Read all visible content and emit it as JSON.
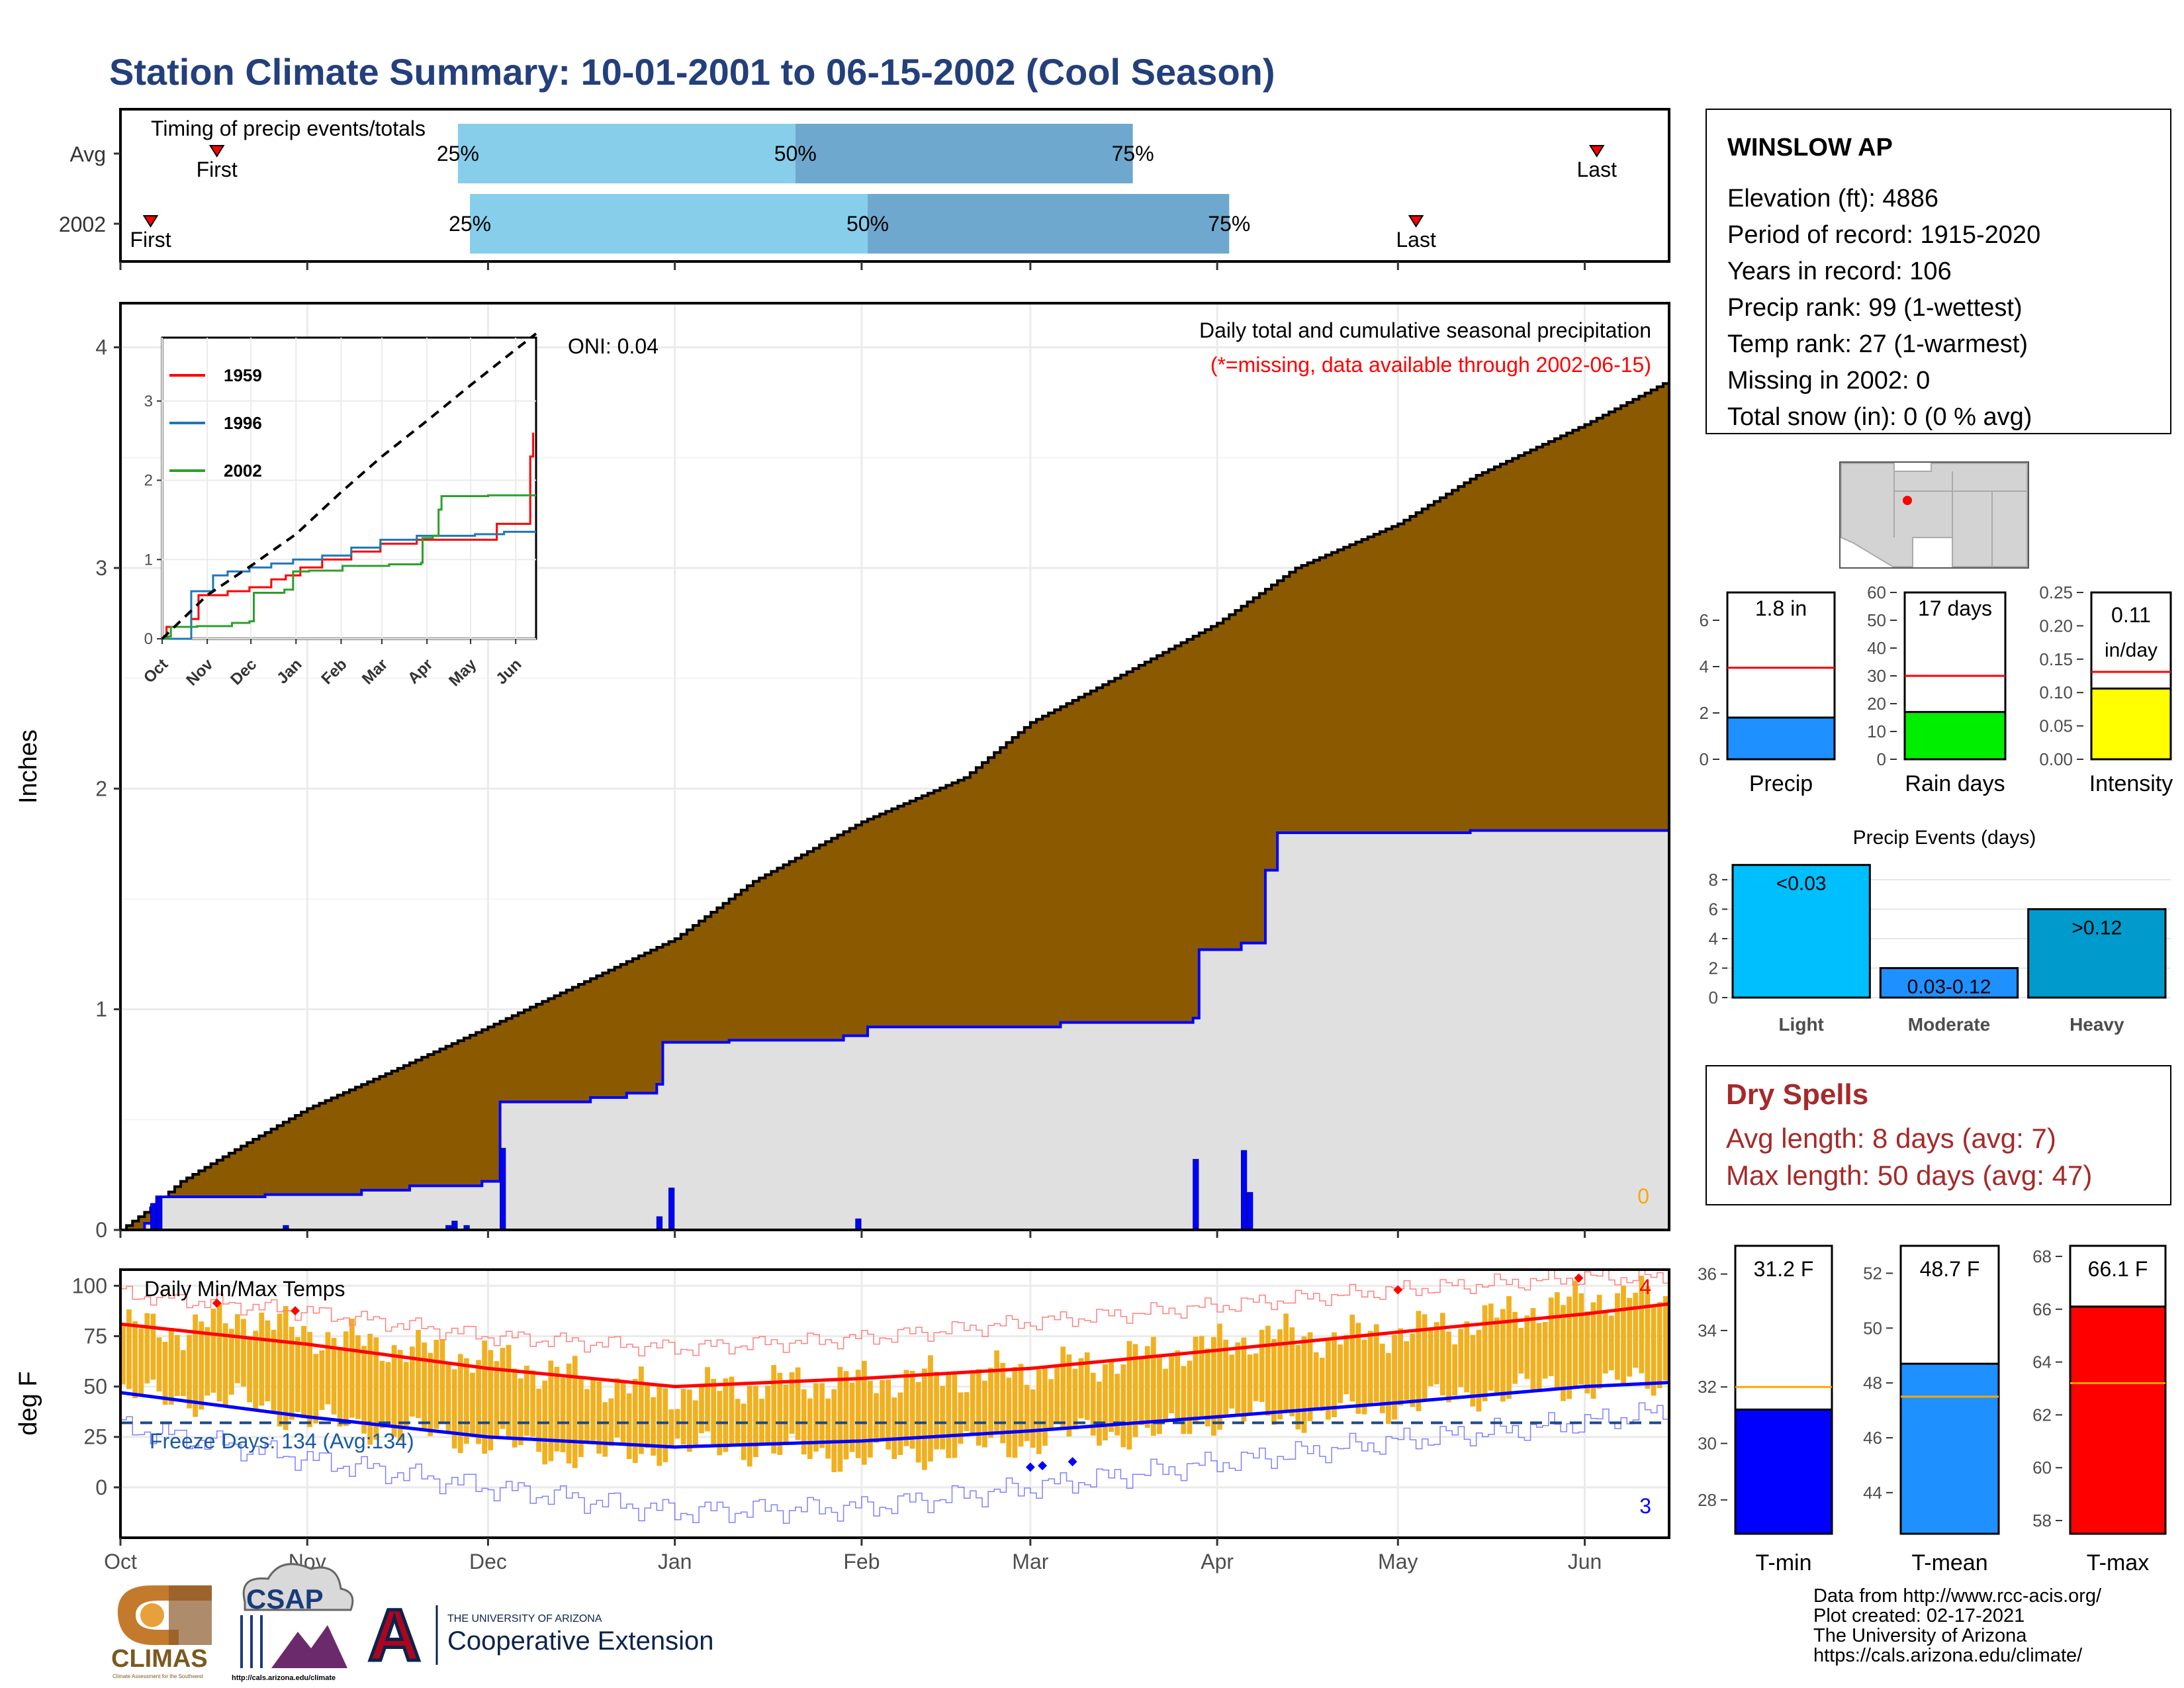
{
  "title": "Station Climate Summary: 10-01-2001 to 06-15-2002 (Cool Season)",
  "colors": {
    "title": "#233f7c",
    "cum_fill": "#8b5a00",
    "light_blue": "#87ceeb",
    "mid_blue": "#6fa8ce",
    "red": "#ff0000",
    "blue": "#0000ff",
    "orange_bar": "#f0b020",
    "dry_red": "#a52a2a",
    "green": "#00ee00",
    "yellow": "#ffff00",
    "dodger": "#1e90ff",
    "sky": "#00bfff",
    "deep_sky": "#009acd",
    "avg_line": "#ffa500"
  },
  "timing_panel": {
    "label": "Timing of precip events/totals",
    "rows": [
      {
        "name": "Avg",
        "first_day": 16,
        "last_day": 245,
        "p25_day": 56,
        "p50_day": 112,
        "p75_day": 168,
        "first_label": "First",
        "last_label": "Last",
        "p25_label": "25%",
        "p50_label": "50%",
        "p75_label": "75%"
      },
      {
        "name": "2002",
        "first_day": 5,
        "last_day": 215,
        "p25_day": 58,
        "p50_day": 124,
        "p75_day": 184,
        "first_label": "First",
        "last_label": "Last",
        "p25_label": "25%",
        "p50_label": "50%",
        "p75_label": "75%"
      }
    ]
  },
  "months": {
    "labels": [
      "Oct",
      "Nov",
      "Dec",
      "Jan",
      "Feb",
      "Mar",
      "Apr",
      "May",
      "Jun"
    ],
    "start_days": [
      0,
      31,
      61,
      92,
      123,
      151,
      182,
      212,
      243
    ]
  },
  "chart_data": [
    {
      "type": "area",
      "name": "Daily total and cumulative seasonal precipitation",
      "title": "Daily total and cumulative seasonal precipitation",
      "subtitle": "(*=missing, data available through 2002-06-15)",
      "ylabel": "Inches",
      "ylim": [
        0,
        4.2
      ],
      "yticks": [
        0,
        1,
        2,
        3,
        4
      ],
      "oni_label": "ONI: 0.04",
      "missing_count": "0",
      "avg_cumulative": {
        "x": [
          0,
          5,
          10,
          20,
          31,
          45,
          61,
          75,
          92,
          105,
          123,
          140,
          151,
          165,
          182,
          195,
          212,
          225,
          243,
          257
        ],
        "y": [
          0,
          0.1,
          0.22,
          0.38,
          0.55,
          0.72,
          0.92,
          1.1,
          1.32,
          1.58,
          1.85,
          2.05,
          2.3,
          2.5,
          2.75,
          3.0,
          3.2,
          3.42,
          3.65,
          3.85
        ]
      },
      "cumulative_2002": {
        "x": [
          0,
          4,
          6,
          8,
          12,
          24,
          40,
          48,
          60,
          63,
          78,
          84,
          89,
          90,
          101,
          120,
          124,
          156,
          178,
          179,
          186,
          190,
          192,
          224,
          257
        ],
        "y": [
          0,
          0.03,
          0.15,
          0.15,
          0.15,
          0.16,
          0.18,
          0.2,
          0.22,
          0.58,
          0.6,
          0.62,
          0.66,
          0.85,
          0.86,
          0.88,
          0.92,
          0.94,
          0.96,
          1.27,
          1.3,
          1.63,
          1.8,
          1.81,
          1.81
        ]
      },
      "daily_bars": [
        {
          "day": 5,
          "value": 0.12
        },
        {
          "day": 6,
          "value": 0.15
        },
        {
          "day": 27,
          "value": 0.02
        },
        {
          "day": 54,
          "value": 0.02
        },
        {
          "day": 55,
          "value": 0.04
        },
        {
          "day": 57,
          "value": 0.02
        },
        {
          "day": 63,
          "value": 0.37
        },
        {
          "day": 89,
          "value": 0.06
        },
        {
          "day": 91,
          "value": 0.19
        },
        {
          "day": 122,
          "value": 0.05
        },
        {
          "day": 178,
          "value": 0.32
        },
        {
          "day": 186,
          "value": 0.36
        },
        {
          "day": 187,
          "value": 0.17
        }
      ]
    },
    {
      "type": "line",
      "name": "inset",
      "xlabels": [
        "Oct",
        "Nov",
        "Dec",
        "Jan",
        "Feb",
        "Mar",
        "Apr",
        "May",
        "Jun"
      ],
      "ylim": [
        0,
        3.8
      ],
      "yticks": [
        0,
        1,
        2,
        3
      ],
      "series": [
        {
          "name": "1959",
          "color": "#ff0000",
          "x": [
            0,
            3,
            20,
            25,
            45,
            60,
            75,
            85,
            95,
            110,
            130,
            150,
            175,
            195,
            210,
            230,
            253,
            255
          ],
          "y": [
            0,
            0.15,
            0.25,
            0.55,
            0.6,
            0.65,
            0.75,
            0.8,
            0.9,
            1.0,
            1.1,
            1.2,
            1.25,
            1.25,
            1.25,
            1.45,
            2.3,
            2.6
          ]
        },
        {
          "name": "1996",
          "color": "#1f77b4",
          "x": [
            0,
            20,
            35,
            45,
            60,
            75,
            90,
            110,
            130,
            150,
            175,
            195,
            215,
            235,
            257
          ],
          "y": [
            0,
            0.6,
            0.8,
            0.85,
            0.9,
            0.95,
            1.0,
            1.05,
            1.15,
            1.25,
            1.3,
            1.3,
            1.32,
            1.35,
            1.35
          ]
        },
        {
          "name": "2002",
          "color": "#2ca02c",
          "x": [
            0,
            4,
            6,
            24,
            48,
            60,
            63,
            84,
            90,
            101,
            124,
            156,
            178,
            179,
            186,
            190,
            192,
            224,
            257
          ],
          "y": [
            0,
            0.03,
            0.15,
            0.16,
            0.2,
            0.22,
            0.58,
            0.62,
            0.85,
            0.86,
            0.92,
            0.94,
            0.96,
            1.27,
            1.3,
            1.63,
            1.8,
            1.81,
            1.81
          ]
        },
        {
          "name": "avg",
          "color": "#000000",
          "dashed": true,
          "x": [
            0,
            31,
            61,
            92,
            123,
            151,
            182,
            212,
            243,
            257
          ],
          "y": [
            0,
            0.55,
            0.92,
            1.32,
            1.85,
            2.3,
            2.75,
            3.2,
            3.65,
            3.85
          ]
        }
      ]
    },
    {
      "type": "bar",
      "name": "Daily Min/Max Temps",
      "title": "Daily Min/Max Temps",
      "ylabel": "deg F",
      "ylim": [
        -25,
        108
      ],
      "yticks": [
        0,
        25,
        50,
        75,
        100
      ],
      "freeze_label": "Freeze Days: 134 (Avg:134)",
      "freeze_line": 32,
      "record_high_count": "4",
      "record_low_count": "3",
      "avg_max": {
        "x": [
          0,
          31,
          61,
          92,
          123,
          151,
          182,
          212,
          243,
          257
        ],
        "y": [
          81,
          71,
          59,
          50,
          54,
          59,
          68,
          77,
          86,
          91
        ]
      },
      "avg_min": {
        "x": [
          0,
          31,
          61,
          92,
          123,
          151,
          182,
          212,
          243,
          257
        ],
        "y": [
          47,
          35,
          25,
          20,
          23,
          28,
          35,
          42,
          50,
          52
        ]
      },
      "record_max": {
        "x": [
          0,
          31,
          61,
          92,
          123,
          151,
          182,
          212,
          243,
          257
        ],
        "y": [
          96,
          87,
          75,
          69,
          74,
          82,
          90,
          98,
          104,
          104
        ]
      },
      "record_min": {
        "x": [
          0,
          31,
          61,
          92,
          123,
          151,
          182,
          212,
          243,
          257
        ],
        "y": [
          30,
          14,
          0,
          -12,
          -10,
          0,
          12,
          23,
          32,
          38
        ]
      },
      "record_high_days": [
        16,
        29,
        212,
        242
      ],
      "record_low_days": [
        151,
        153,
        158
      ],
      "daily_temps": {
        "x": [
          0,
          10,
          20,
          30,
          40,
          50,
          60,
          70,
          80,
          90,
          100,
          110,
          120,
          130,
          140,
          150,
          160,
          170,
          180,
          190,
          200,
          210,
          220,
          230,
          240,
          250,
          257
        ],
        "max": [
          80,
          78,
          85,
          77,
          72,
          68,
          65,
          58,
          52,
          47,
          50,
          52,
          53,
          54,
          56,
          58,
          61,
          66,
          70,
          76,
          74,
          77,
          80,
          86,
          92,
          96,
          91
        ],
        "min": [
          46,
          44,
          43,
          34,
          30,
          27,
          23,
          18,
          16,
          19,
          20,
          18,
          15,
          16,
          20,
          22,
          28,
          25,
          34,
          35,
          36,
          40,
          44,
          48,
          50,
          52,
          52
        ]
      }
    },
    {
      "type": "bar",
      "name": "Precip",
      "categories": [
        "Precip"
      ],
      "values": [
        1.8
      ],
      "avg": 3.95,
      "ylim": [
        0,
        7.2
      ],
      "yticks": [
        0,
        2,
        4,
        6
      ],
      "label": "1.8 in",
      "xlabel": "Precip"
    },
    {
      "type": "bar",
      "name": "Rain days",
      "categories": [
        "Rain days"
      ],
      "values": [
        17
      ],
      "avg": 30,
      "ylim": [
        0,
        60
      ],
      "yticks": [
        0,
        10,
        20,
        30,
        40,
        50,
        60
      ],
      "label": "17 days",
      "xlabel": "Rain days"
    },
    {
      "type": "bar",
      "name": "Intensity",
      "categories": [
        "Intensity"
      ],
      "values": [
        0.106
      ],
      "avg": 0.131,
      "ylim": [
        0,
        0.25
      ],
      "yticks": [
        0.0,
        0.05,
        0.1,
        0.15,
        0.2,
        0.25
      ],
      "ytick_labels": [
        "0.00",
        "0.05",
        "0.10",
        "0.15",
        "0.20",
        "0.25"
      ],
      "label": "0.11",
      "label2": "in/day",
      "xlabel": "Intensity"
    },
    {
      "type": "bar",
      "name": "Precip Events (days)",
      "title": "Precip Events (days)",
      "categories": [
        "Light",
        "Moderate",
        "Heavy"
      ],
      "values": [
        9,
        2,
        6
      ],
      "bar_labels": [
        "<0.03",
        "0.03-0.12",
        ">0.12"
      ],
      "ylim": [
        0,
        9.3
      ],
      "yticks": [
        0,
        2,
        4,
        6,
        8
      ]
    },
    {
      "type": "bar",
      "name": "T-min",
      "categories": [
        "T-min"
      ],
      "values": [
        31.2
      ],
      "avg": 32.0,
      "ylim": [
        26.8,
        37.0
      ],
      "yticks": [
        28,
        30,
        32,
        34,
        36
      ],
      "label": "31.2 F",
      "xlabel": "T-min"
    },
    {
      "type": "bar",
      "name": "T-mean",
      "categories": [
        "T-mean"
      ],
      "values": [
        48.7
      ],
      "avg": 47.5,
      "ylim": [
        42.5,
        53.0
      ],
      "yticks": [
        44,
        46,
        48,
        50,
        52
      ],
      "label": "48.7 F",
      "xlabel": "T-mean"
    },
    {
      "type": "bar",
      "name": "T-max",
      "categories": [
        "T-max"
      ],
      "values": [
        66.1
      ],
      "avg": 63.2,
      "ylim": [
        57.5,
        68.4
      ],
      "yticks": [
        58,
        60,
        62,
        64,
        66,
        68
      ],
      "label": "66.1 F",
      "xlabel": "T-max"
    }
  ],
  "station": {
    "name": "WINSLOW AP",
    "lines": [
      "Elevation (ft): 4886",
      "Period of record: 1915-2020",
      "Years in record: 106",
      "Precip rank: 99 (1-wettest)",
      "Temp rank: 27 (1-warmest)",
      "Missing in 2002: 0",
      "Total snow (in): 0 (0 % avg)"
    ]
  },
  "dry_spells": {
    "title": "Dry Spells",
    "lines": [
      "Avg length: 8 days (avg: 7)",
      "Max length: 50 days (avg: 47)"
    ]
  },
  "credits": {
    "lines": [
      "Data from http://www.rcc-acis.org/",
      "Plot created: 02-17-2021",
      "The University of Arizona",
      "https://cals.arizona.edu/climate/"
    ]
  },
  "logos": {
    "climas": "CLIMAS",
    "climas_sub": "Climate Assessment for the Southwest",
    "csap": "CSAP",
    "csap_sub": "http://cals.arizona.edu/climate",
    "ua_top": "THE UNIVERSITY OF ARIZONA",
    "ua_bottom": "Cooperative Extension",
    "ua_letter": "A"
  }
}
